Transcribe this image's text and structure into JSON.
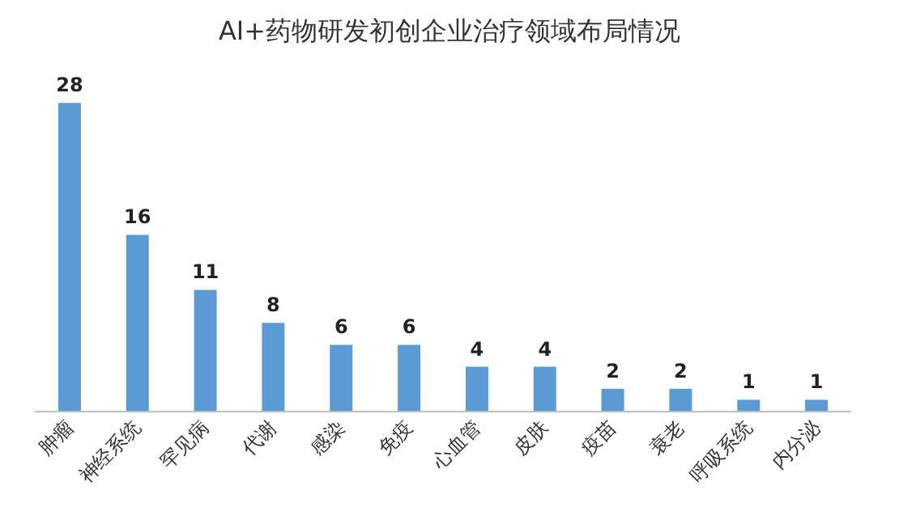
{
  "chart_data": {
    "type": "bar",
    "title": "AI+药物研发初创企业治疗领域布局情况",
    "categories": [
      "肿瘤",
      "神经系统",
      "罕见病",
      "代谢",
      "感染",
      "免疫",
      "心血管",
      "皮肤",
      "疫苗",
      "衰老",
      "呼吸系统",
      "内分泌"
    ],
    "values": [
      28,
      16,
      11,
      8,
      6,
      6,
      4,
      4,
      2,
      2,
      1,
      1
    ],
    "color": "#5b9bd5",
    "data_labels": true
  }
}
